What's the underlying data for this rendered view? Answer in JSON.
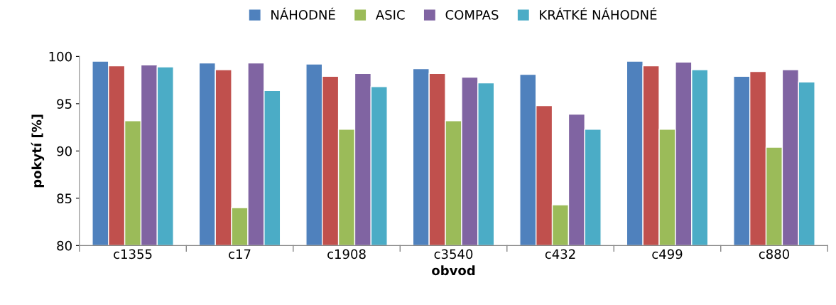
{
  "chart_data": {
    "type": "bar",
    "xlabel": "obvod",
    "ylabel": "pokytí [%]",
    "categories": [
      "c1355",
      "c17",
      "c1908",
      "c3540",
      "c432",
      "c499",
      "c880"
    ],
    "series": [
      {
        "name": "NÁHODNÉ",
        "color": "#4f81bd",
        "values": [
          99.5,
          99.3,
          99.2,
          98.7,
          98.1,
          99.5,
          97.9
        ]
      },
      {
        "color": "#c0504d",
        "values": [
          99.0,
          98.6,
          97.9,
          98.2,
          94.8,
          99.0,
          98.4
        ]
      },
      {
        "name": "ASIC",
        "color": "#9bbb59",
        "values": [
          93.2,
          84.0,
          92.3,
          93.2,
          84.3,
          92.3,
          90.4
        ]
      },
      {
        "name": "COMPAS",
        "color": "#8064a2",
        "values": [
          99.1,
          99.3,
          98.2,
          97.8,
          93.9,
          99.4,
          98.6
        ]
      },
      {
        "name": "KRÁTKÉ NÁHODNÉ",
        "color": "#4bacc6",
        "values": [
          98.9,
          96.4,
          96.8,
          97.2,
          92.3,
          98.6,
          97.3
        ]
      }
    ],
    "ylim": [
      80,
      100
    ],
    "yticks": [
      80,
      85,
      90,
      95,
      100
    ],
    "grid": false,
    "legend": "top"
  }
}
